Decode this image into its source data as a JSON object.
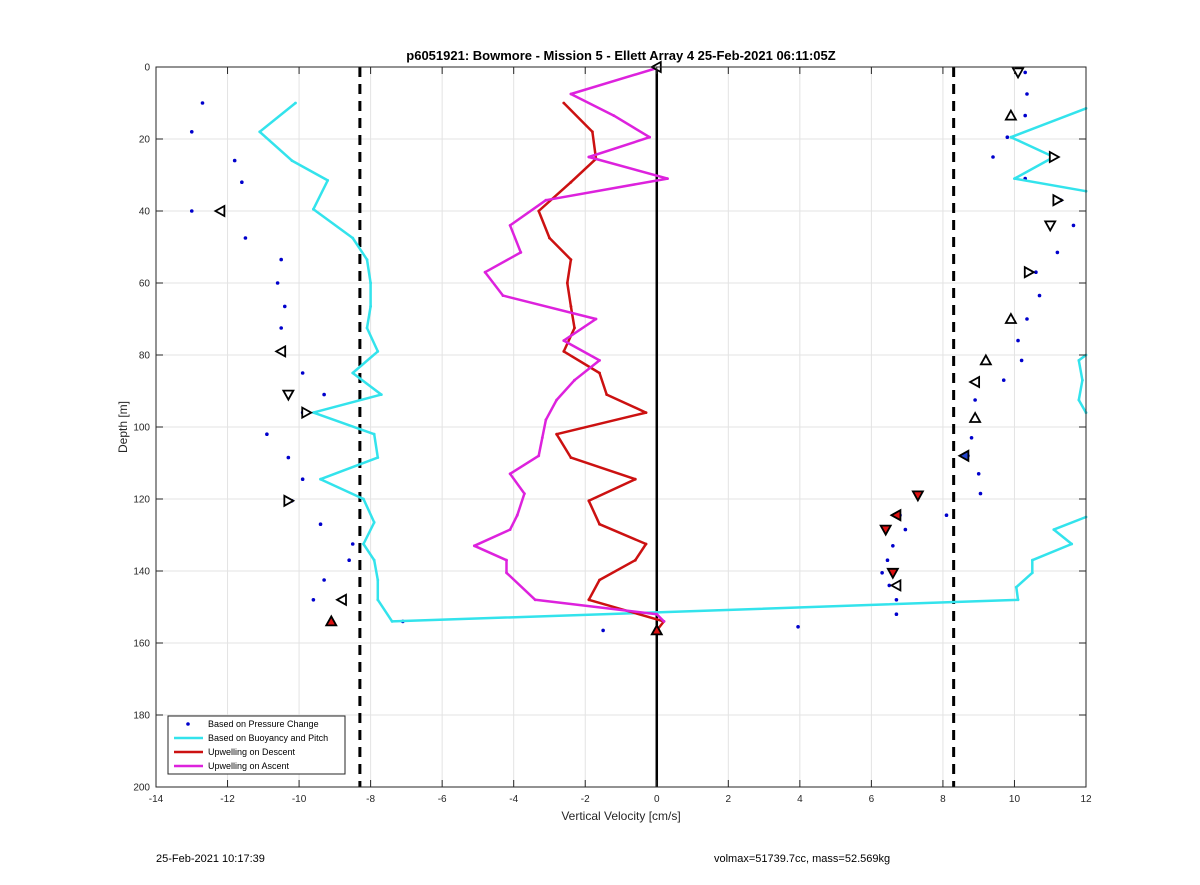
{
  "chart_data": {
    "type": "scatter",
    "title": "p6051921: Bowmore - Mission 5 - Ellett Array 4 25-Feb-2021 06:11:05Z",
    "xlabel": "Vertical Velocity [cm/s]",
    "ylabel": "Depth [m]",
    "xlim": [
      -14,
      12
    ],
    "ylim": [
      0,
      200
    ],
    "y_reversed": true,
    "x_ticks": [
      -14,
      -12,
      -10,
      -8,
      -6,
      -4,
      -2,
      0,
      2,
      4,
      6,
      8,
      10,
      12
    ],
    "y_ticks": [
      0,
      20,
      40,
      60,
      80,
      100,
      120,
      140,
      160,
      180,
      200
    ],
    "grid": true,
    "legend_position": "bottom-left",
    "threshold_lines_x": [
      -8.3,
      8.3
    ],
    "zero_line_x": 0,
    "legend": [
      {
        "label": "Based on Pressure Change",
        "color": "#0000cc"
      },
      {
        "label": "Based on Buoyancy and Pitch",
        "color": "#33e3ec"
      },
      {
        "label": "Upwelling on Descent",
        "color": "#cc1111"
      },
      {
        "label": "Upwelling on Ascent",
        "color": "#dd22dd"
      }
    ],
    "series": [
      {
        "name": "Based on Pressure Change",
        "style": "dots",
        "color": "#0000cc",
        "points": [
          [
            -12.7,
            10
          ],
          [
            -13,
            18
          ],
          [
            -11.8,
            26
          ],
          [
            -11.6,
            32
          ],
          [
            -13,
            40
          ],
          [
            -12.2,
            40
          ],
          [
            -11.5,
            47.5
          ],
          [
            -10.5,
            53.5
          ],
          [
            -10.6,
            60
          ],
          [
            -10.4,
            66.5
          ],
          [
            -10.5,
            72.5
          ],
          [
            -10.5,
            79
          ],
          [
            -9.9,
            85
          ],
          [
            -9.3,
            91
          ],
          [
            -9.9,
            96
          ],
          [
            -10.9,
            102
          ],
          [
            -10.3,
            108.5
          ],
          [
            -9.9,
            114.5
          ],
          [
            -10.2,
            120.5
          ],
          [
            -9.4,
            127
          ],
          [
            -8.5,
            132.5
          ],
          [
            -8.6,
            137
          ],
          [
            -9.3,
            142.5
          ],
          [
            -9.6,
            148
          ],
          [
            -7.1,
            154
          ],
          [
            -1.5,
            156.5
          ],
          [
            3.95,
            155.5
          ],
          [
            6.7,
            152
          ],
          [
            6.7,
            148
          ],
          [
            6.5,
            144
          ],
          [
            6.3,
            140.5
          ],
          [
            6.45,
            137
          ],
          [
            6.6,
            133
          ],
          [
            6.95,
            128.5
          ],
          [
            6.8,
            124.5
          ],
          [
            8.1,
            124.5
          ],
          [
            9.05,
            118.5
          ],
          [
            9,
            113
          ],
          [
            8.7,
            108
          ],
          [
            8.8,
            103
          ],
          [
            8.9,
            98
          ],
          [
            8.9,
            92.5
          ],
          [
            9.7,
            87
          ],
          [
            10.2,
            81.5
          ],
          [
            10.1,
            76
          ],
          [
            10.35,
            70
          ],
          [
            10.7,
            63.5
          ],
          [
            10.6,
            57
          ],
          [
            11.2,
            51.5
          ],
          [
            11.65,
            44
          ],
          [
            11.3,
            37
          ],
          [
            10.3,
            31
          ],
          [
            9.4,
            25
          ],
          [
            9.8,
            19.5
          ],
          [
            10.3,
            13.5
          ],
          [
            10.35,
            7.5
          ],
          [
            10.3,
            1.5
          ]
        ]
      },
      {
        "name": "Based on Buoyancy and Pitch",
        "style": "line",
        "color": "#33e3ec",
        "segments": [
          [
            [
              -10.1,
              10
            ],
            [
              -11.1,
              18
            ],
            [
              -10.2,
              26
            ],
            [
              -9.2,
              31.5
            ],
            [
              -9.6,
              39.5
            ],
            [
              -8.5,
              47.5
            ],
            [
              -8.1,
              53.5
            ],
            [
              -8,
              60
            ],
            [
              -8,
              66.5
            ],
            [
              -8.1,
              72.5
            ],
            [
              -7.8,
              79
            ],
            [
              -8.5,
              85
            ],
            [
              -7.7,
              91
            ],
            [
              -9.6,
              96
            ],
            [
              -7.9,
              102
            ],
            [
              -7.8,
              108.5
            ],
            [
              -9.4,
              114.5
            ],
            [
              -8.2,
              120
            ],
            [
              -7.9,
              126.5
            ],
            [
              -8.2,
              132.5
            ],
            [
              -7.9,
              137
            ],
            [
              -7.8,
              142.5
            ],
            [
              -7.8,
              148
            ],
            [
              -7.4,
              154
            ],
            [
              0,
              151.5
            ],
            [
              10.1,
              148
            ],
            [
              10.05,
              144.5
            ],
            [
              10.5,
              140.5
            ],
            [
              10.5,
              137
            ],
            [
              11.6,
              132.5
            ],
            [
              11.1,
              128.5
            ],
            [
              12,
              125
            ]
          ],
          [
            [
              12,
              80
            ],
            [
              11.8,
              81.5
            ],
            [
              11.9,
              87
            ],
            [
              11.8,
              92.5
            ],
            [
              12,
              96
            ]
          ],
          [
            [
              12,
              11.5
            ],
            [
              9.9,
              19.5
            ],
            [
              11.1,
              25
            ],
            [
              10,
              31
            ],
            [
              12,
              34.5
            ]
          ]
        ]
      },
      {
        "name": "Upwelling on Descent",
        "style": "line",
        "color": "#cc1111",
        "points": [
          [
            -2.6,
            10
          ],
          [
            -1.8,
            18
          ],
          [
            -1.7,
            25.5
          ],
          [
            -2.4,
            32
          ],
          [
            -3.3,
            40
          ],
          [
            -3.0,
            47.5
          ],
          [
            -2.4,
            53.5
          ],
          [
            -2.5,
            60
          ],
          [
            -2.4,
            66.5
          ],
          [
            -2.3,
            72.5
          ],
          [
            -2.6,
            79
          ],
          [
            -1.6,
            85
          ],
          [
            -1.4,
            91
          ],
          [
            -0.3,
            96
          ],
          [
            -2.8,
            102
          ],
          [
            -2.4,
            108.5
          ],
          [
            -0.6,
            114.5
          ],
          [
            -1.9,
            120.5
          ],
          [
            -1.6,
            127
          ],
          [
            -0.3,
            132.5
          ],
          [
            -0.6,
            137
          ],
          [
            -1.6,
            142.5
          ],
          [
            -1.9,
            148
          ],
          [
            0.2,
            154
          ],
          [
            0,
            156.5
          ]
        ]
      },
      {
        "name": "Upwelling on Ascent",
        "style": "line",
        "color": "#dd22dd",
        "points": [
          [
            0.1,
            0
          ],
          [
            -2.4,
            7.5
          ],
          [
            -1.2,
            13.5
          ],
          [
            -0.2,
            19.5
          ],
          [
            -1.9,
            25
          ],
          [
            0.3,
            31
          ],
          [
            -3.1,
            37
          ],
          [
            -4.1,
            44
          ],
          [
            -3.8,
            51.5
          ],
          [
            -4.8,
            57
          ],
          [
            -4.3,
            63.5
          ],
          [
            -1.7,
            70
          ],
          [
            -2.6,
            76
          ],
          [
            -1.6,
            81.5
          ],
          [
            -2.3,
            87
          ],
          [
            -2.8,
            92.5
          ],
          [
            -3.1,
            98
          ],
          [
            -3.2,
            103
          ],
          [
            -3.3,
            108
          ],
          [
            -4.1,
            113
          ],
          [
            -3.7,
            118.5
          ],
          [
            -3.9,
            124.5
          ],
          [
            -4.1,
            128.5
          ],
          [
            -5.1,
            133
          ],
          [
            -4.2,
            137
          ],
          [
            -4.2,
            140.5
          ],
          [
            -3.4,
            148
          ],
          [
            0,
            152
          ],
          [
            0.2,
            154
          ]
        ]
      },
      {
        "name": "Markers",
        "style": "markers",
        "points": [
          {
            "x": 0,
            "y": 0,
            "shape": "left",
            "fill": "#ffffff"
          },
          {
            "x": -12.2,
            "y": 40,
            "shape": "left",
            "fill": "#ffffff"
          },
          {
            "x": -10.5,
            "y": 79,
            "shape": "left",
            "fill": "#ffffff"
          },
          {
            "x": -10.3,
            "y": 91,
            "shape": "down",
            "fill": "#ffffff"
          },
          {
            "x": -9.8,
            "y": 96,
            "shape": "right",
            "fill": "#ffffff"
          },
          {
            "x": -10.3,
            "y": 120.5,
            "shape": "right",
            "fill": "#ffffff"
          },
          {
            "x": -8.8,
            "y": 148,
            "shape": "left",
            "fill": "#ffffff"
          },
          {
            "x": -9.1,
            "y": 154,
            "shape": "up",
            "fill": "#dd1111"
          },
          {
            "x": 0,
            "y": 156.5,
            "shape": "up",
            "fill": "#dd1111"
          },
          {
            "x": 6.7,
            "y": 144,
            "shape": "left",
            "fill": "#ffffff"
          },
          {
            "x": 6.6,
            "y": 140.5,
            "shape": "down",
            "fill": "#dd1111"
          },
          {
            "x": 6.4,
            "y": 128.5,
            "shape": "down",
            "fill": "#dd1111"
          },
          {
            "x": 6.7,
            "y": 124.5,
            "shape": "left",
            "fill": "#dd1111"
          },
          {
            "x": 7.3,
            "y": 119,
            "shape": "down",
            "fill": "#dd1111"
          },
          {
            "x": 8.6,
            "y": 108,
            "shape": "left",
            "fill": "#2244cc"
          },
          {
            "x": 8.9,
            "y": 97.5,
            "shape": "up",
            "fill": "#ffffff"
          },
          {
            "x": 8.9,
            "y": 87.5,
            "shape": "left",
            "fill": "#ffffff"
          },
          {
            "x": 9.2,
            "y": 81.5,
            "shape": "up",
            "fill": "#ffffff"
          },
          {
            "x": 9.9,
            "y": 70,
            "shape": "up",
            "fill": "#ffffff"
          },
          {
            "x": 10.4,
            "y": 57,
            "shape": "right",
            "fill": "#ffffff"
          },
          {
            "x": 11,
            "y": 44,
            "shape": "down",
            "fill": "#ffffff"
          },
          {
            "x": 11.2,
            "y": 37,
            "shape": "right",
            "fill": "#ffffff"
          },
          {
            "x": 11.1,
            "y": 25,
            "shape": "right",
            "fill": "#ffffff"
          },
          {
            "x": 9.9,
            "y": 13.5,
            "shape": "up",
            "fill": "#ffffff"
          },
          {
            "x": 10.1,
            "y": 1.5,
            "shape": "down",
            "fill": "#ffffff"
          }
        ]
      }
    ]
  },
  "footer": {
    "timestamp": "25-Feb-2021 10:17:39",
    "summary": "volmax=51739.7cc, mass=52.569kg"
  }
}
